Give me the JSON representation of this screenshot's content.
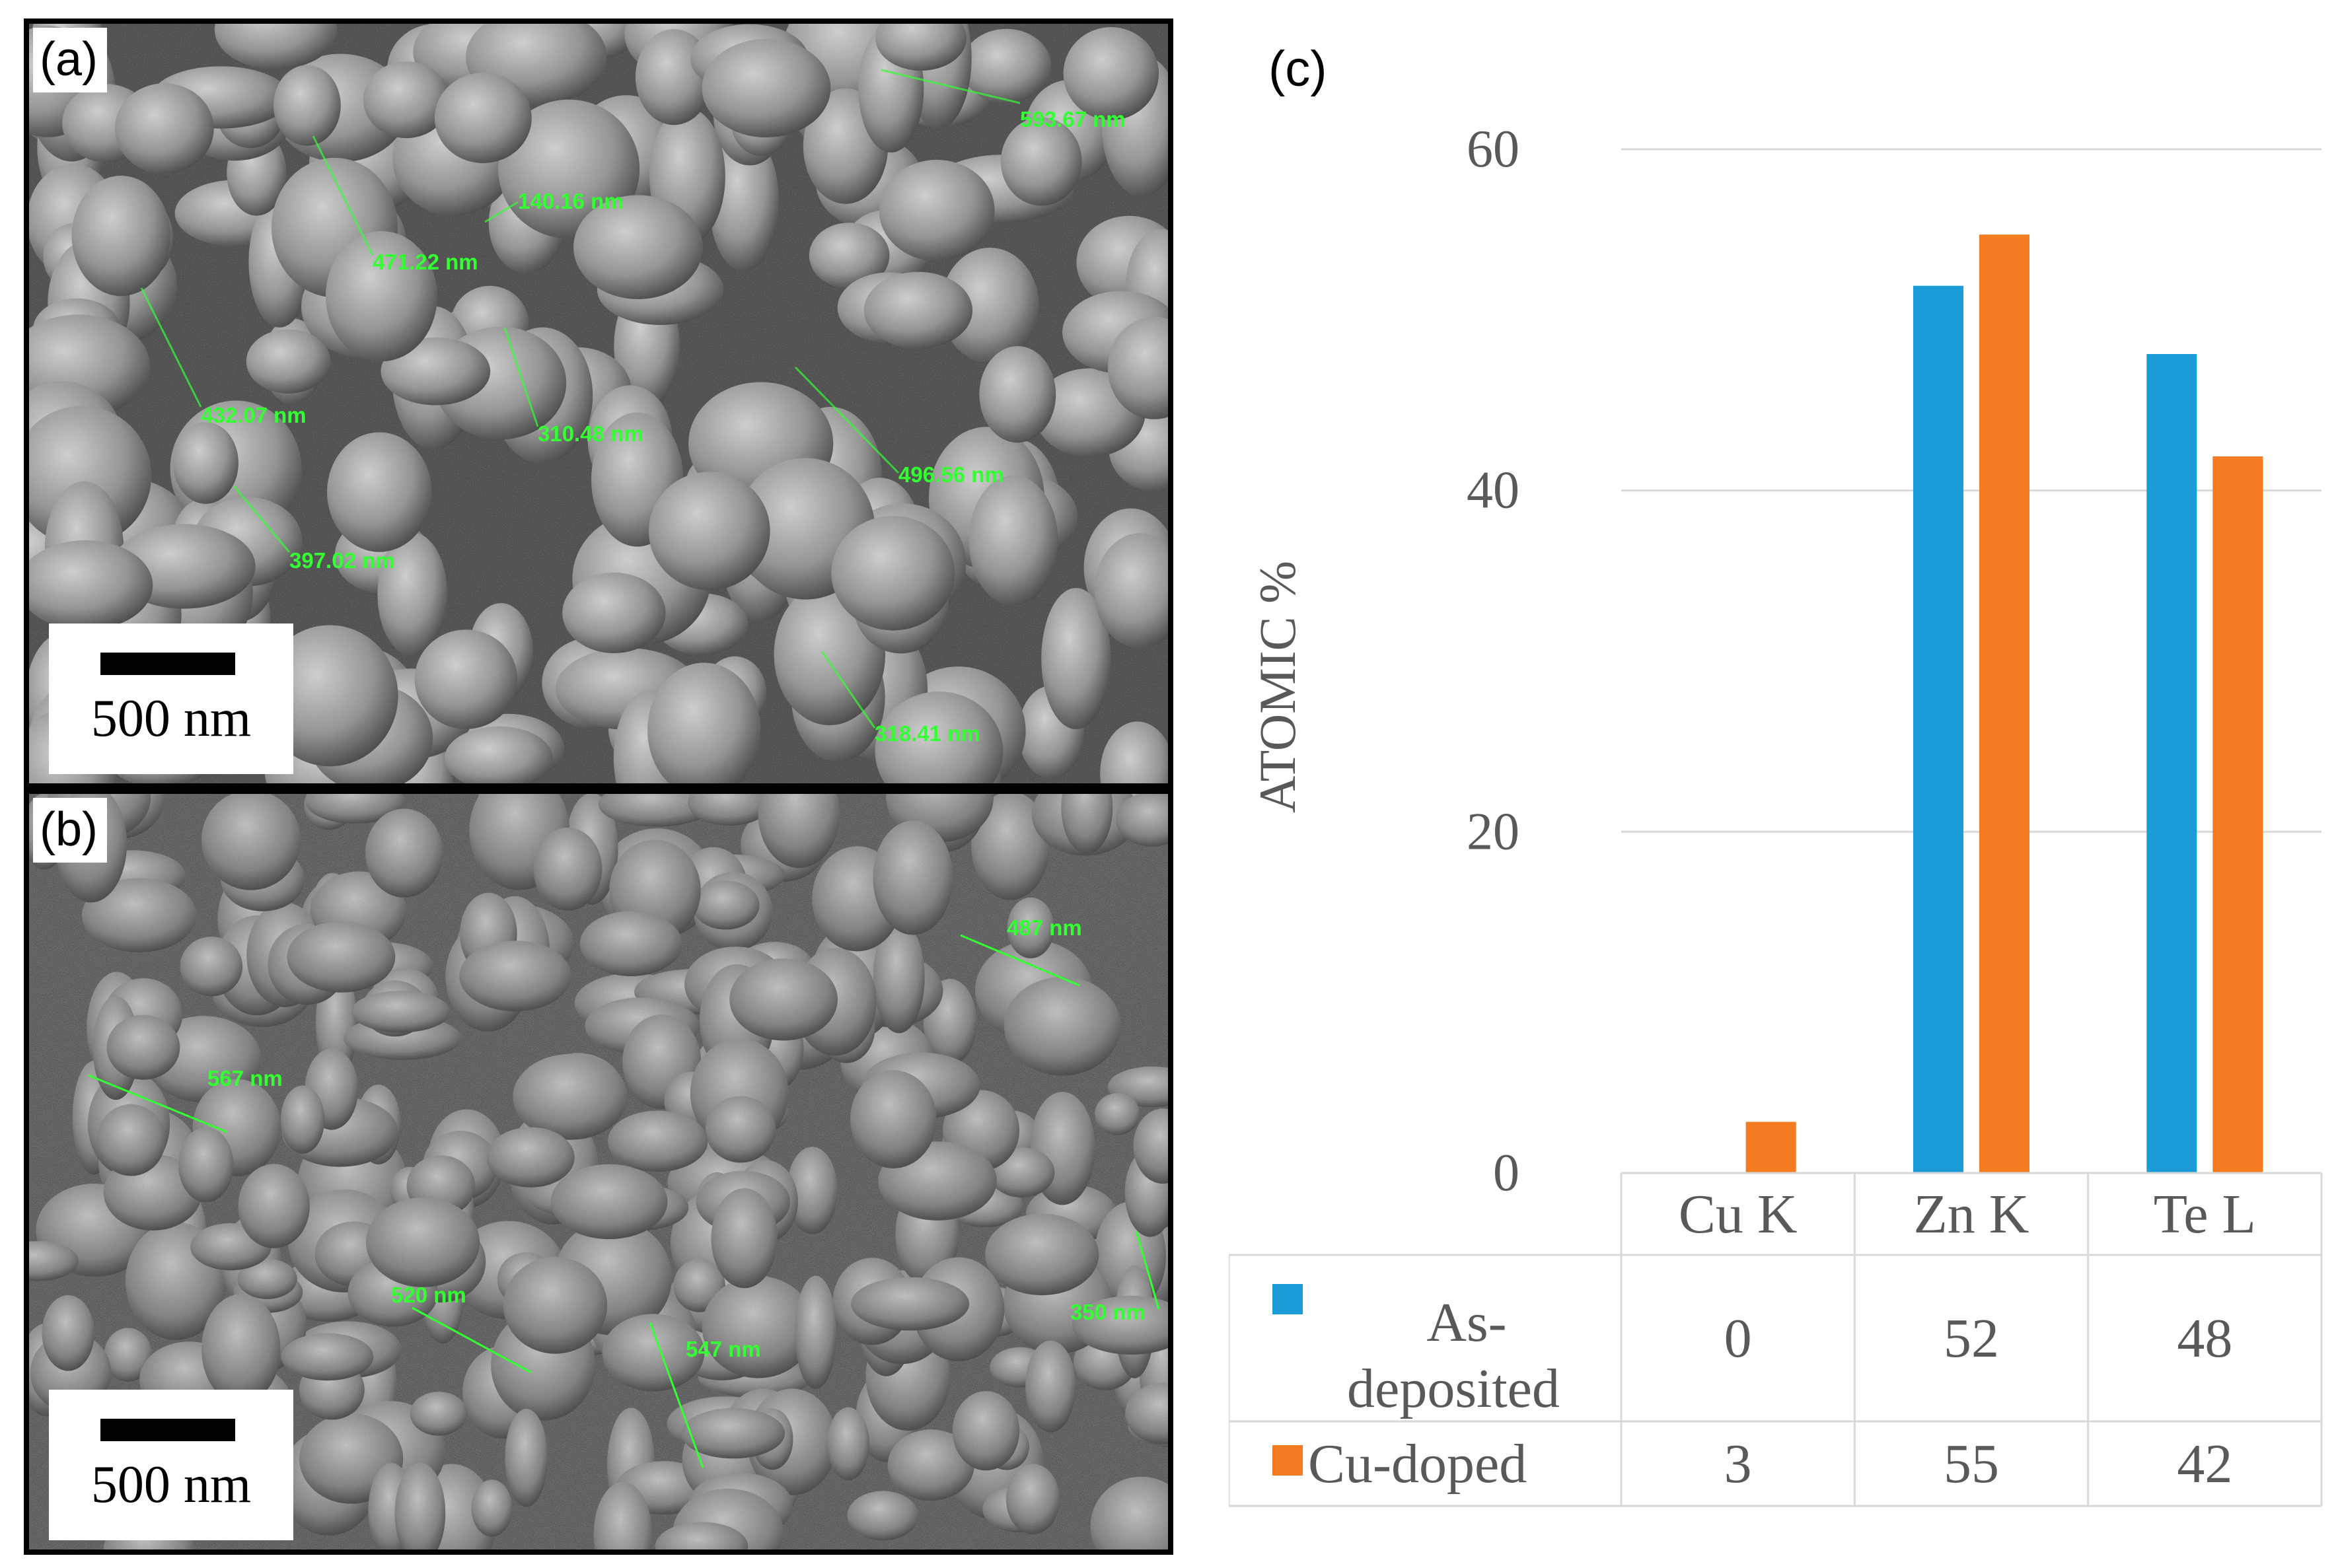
{
  "panel_a": {
    "label": "(a)",
    "scale_bar": "500 nm",
    "measurements": [
      "593.67 nm",
      "140.16 nm",
      "471.22 nm",
      "432.07 nm",
      "310.48 nm",
      "496.56 nm",
      "397.02 nm",
      "318.41 nm"
    ]
  },
  "panel_b": {
    "label": "(b)",
    "scale_bar": "500 nm",
    "measurements": [
      "487 nm",
      "567 nm",
      "520 nm",
      "547 nm",
      "350 nm"
    ]
  },
  "colors": {
    "as_deposited": "#1a9cd8",
    "cu_doped": "#f47b20",
    "measurement": "#33ff33",
    "gridline": "#d9d9d9",
    "axis_text": "#595959"
  },
  "chart_data": {
    "type": "bar",
    "panel_label": "(c)",
    "ylabel": "ATOMIC %",
    "ylim": [
      0,
      60
    ],
    "yticks": [
      "0",
      "20",
      "40",
      "60"
    ],
    "categories": [
      "Cu K",
      "Zn K",
      "Te L"
    ],
    "series": [
      {
        "name_line1": "As-",
        "name_line2": "deposited",
        "values": [
          0,
          52,
          48
        ],
        "labels": [
          "0",
          "52",
          "48"
        ]
      },
      {
        "name": "Cu-doped",
        "values": [
          3,
          55,
          42
        ],
        "labels": [
          "3",
          "55",
          "42"
        ]
      }
    ],
    "grid": true,
    "data_table": true
  }
}
